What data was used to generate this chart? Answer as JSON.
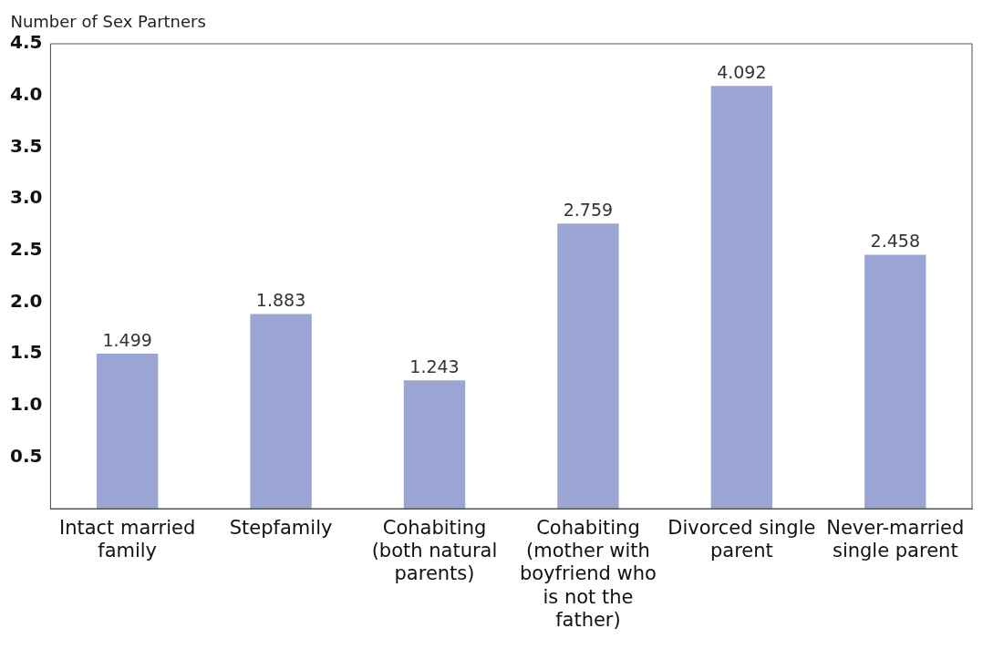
{
  "chart_data": {
    "type": "bar",
    "ylabel": "Number of Sex Partners",
    "categories": [
      "Intact married family",
      "Stepfamily",
      "Cohabiting (both natural parents)",
      "Cohabiting (mother with boyfriend who is not the father)",
      "Divorced single parent",
      "Never-married single parent"
    ],
    "values": [
      1.499,
      1.883,
      1.243,
      2.759,
      4.092,
      2.458
    ],
    "color": "#9aa5d3",
    "ylim": [
      0,
      4.5
    ],
    "yticks": [
      0.5,
      {
        "value": 1,
        "label": "1.0"
      },
      1.5,
      {
        "value": 2,
        "label": "2.0"
      },
      2.5,
      {
        "value": 3,
        "label": "3.0"
      },
      3.5,
      {
        "value": 4,
        "label": "4.0"
      },
      4.5
    ],
    "data_labels": true,
    "grid": false,
    "legend": false
  }
}
